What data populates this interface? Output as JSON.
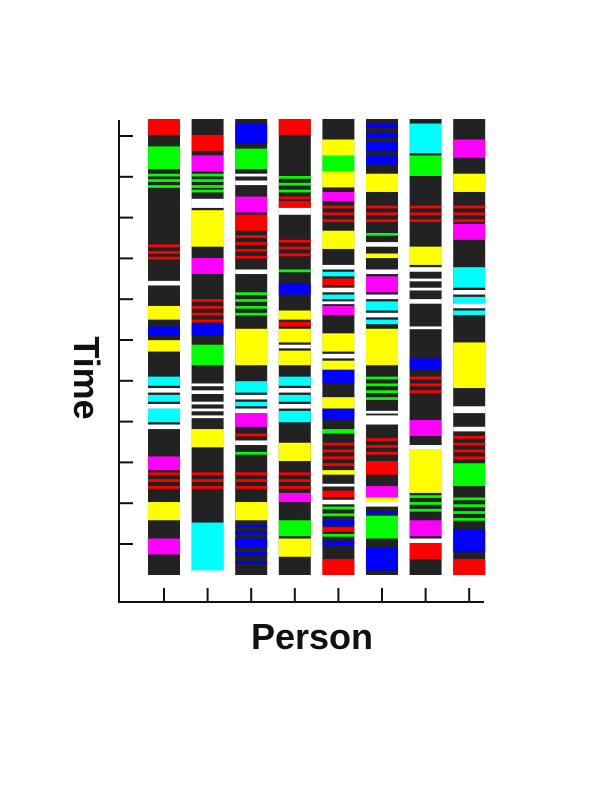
{
  "chart_data": {
    "type": "heatmap",
    "xlabel": "Person",
    "ylabel": "Time",
    "ylim": [
      0,
      100
    ],
    "grid": false,
    "legend": "none",
    "x_tick_count": 8,
    "y_tick_count": 11,
    "base_color": "#222222",
    "colors": {
      "R": "#ff0000",
      "G": "#00ff00",
      "B": "#0000ff",
      "Y": "#ffff00",
      "M": "#ff00ff",
      "C": "#00ffff",
      "W": "#ffffff"
    },
    "persons": [
      {
        "segments": [
          [
            0,
            3.5,
            "R"
          ],
          [
            6,
            11,
            "G"
          ],
          [
            12,
            12.6,
            "G"
          ],
          [
            13.2,
            13.8,
            "G"
          ],
          [
            14.5,
            15.1,
            "G"
          ],
          [
            27.5,
            28.1,
            "R"
          ],
          [
            29,
            29.6,
            "R"
          ],
          [
            30.2,
            30.8,
            "R"
          ],
          [
            35.5,
            36.5,
            "W"
          ],
          [
            41,
            44,
            "Y"
          ],
          [
            45.5,
            47.5,
            "B"
          ],
          [
            48.5,
            51,
            "Y"
          ],
          [
            56.5,
            58.5,
            "C"
          ],
          [
            59,
            60,
            "W"
          ],
          [
            60.5,
            62,
            "C"
          ],
          [
            62.5,
            63.5,
            "W"
          ],
          [
            63.5,
            66.5,
            "C"
          ],
          [
            67,
            68,
            "W"
          ],
          [
            74,
            77,
            "M"
          ],
          [
            77.5,
            78.1,
            "R"
          ],
          [
            79,
            79.6,
            "R"
          ],
          [
            80.5,
            81.1,
            "R"
          ],
          [
            84,
            88,
            "Y"
          ],
          [
            92,
            95.5,
            "M"
          ]
        ]
      },
      {
        "segments": [
          [
            3.5,
            7,
            "R"
          ],
          [
            8,
            11.5,
            "M"
          ],
          [
            12,
            12.6,
            "G"
          ],
          [
            13.2,
            13.8,
            "G"
          ],
          [
            14.5,
            15.1,
            "G"
          ],
          [
            15.5,
            16.1,
            "G"
          ],
          [
            17.5,
            19.5,
            "W"
          ],
          [
            20,
            28,
            "Y"
          ],
          [
            30.5,
            34,
            "M"
          ],
          [
            39.5,
            40.1,
            "R"
          ],
          [
            41,
            41.6,
            "R"
          ],
          [
            42.5,
            43.1,
            "R"
          ],
          [
            44,
            44.6,
            "R"
          ],
          [
            45,
            47.5,
            "B"
          ],
          [
            49.5,
            54,
            "G"
          ],
          [
            58,
            58.6,
            "W"
          ],
          [
            59.5,
            60.3,
            "W"
          ],
          [
            62,
            62.6,
            "W"
          ],
          [
            63.5,
            64.1,
            "W"
          ],
          [
            65,
            65.6,
            "W"
          ],
          [
            68,
            72,
            "Y"
          ],
          [
            77.5,
            78.1,
            "R"
          ],
          [
            79,
            79.6,
            "R"
          ],
          [
            80.5,
            81.1,
            "R"
          ],
          [
            88.5,
            99,
            "C"
          ],
          [
            99,
            100,
            "W"
          ]
        ]
      },
      {
        "segments": [
          [
            1,
            5.5,
            "B"
          ],
          [
            6.5,
            11,
            "G"
          ],
          [
            12,
            12.6,
            "W"
          ],
          [
            13.5,
            14.5,
            "W"
          ],
          [
            17,
            20.5,
            "M"
          ],
          [
            21,
            24.5,
            "R"
          ],
          [
            25.5,
            26.1,
            "R"
          ],
          [
            27,
            27.6,
            "R"
          ],
          [
            28.5,
            29.1,
            "R"
          ],
          [
            30,
            30.6,
            "R"
          ],
          [
            33,
            34,
            "W"
          ],
          [
            38,
            38.6,
            "G"
          ],
          [
            39.5,
            40.1,
            "G"
          ],
          [
            41,
            41.6,
            "G"
          ],
          [
            42.5,
            43.1,
            "G"
          ],
          [
            46,
            54,
            "Y"
          ],
          [
            57.5,
            60,
            "C"
          ],
          [
            60.5,
            61.5,
            "W"
          ],
          [
            62,
            63,
            "C"
          ],
          [
            63.5,
            64.5,
            "W"
          ],
          [
            64.5,
            67.5,
            "M"
          ],
          [
            69,
            69.6,
            "R"
          ],
          [
            70.5,
            71.5,
            "W"
          ],
          [
            73,
            73.6,
            "G"
          ],
          [
            77.5,
            78.1,
            "R"
          ],
          [
            79,
            79.6,
            "R"
          ],
          [
            80.5,
            81.1,
            "R"
          ],
          [
            84,
            88,
            "Y"
          ],
          [
            89,
            89.6,
            "B"
          ],
          [
            90.5,
            91.1,
            "B"
          ],
          [
            92,
            94,
            "B"
          ],
          [
            95,
            95.6,
            "B"
          ],
          [
            97,
            97.6,
            "B"
          ]
        ]
      },
      {
        "segments": [
          [
            0,
            3.5,
            "R"
          ],
          [
            12.5,
            13.1,
            "G"
          ],
          [
            14,
            14.6,
            "G"
          ],
          [
            15.5,
            16.1,
            "G"
          ],
          [
            17,
            17.6,
            "R"
          ],
          [
            18,
            19.5,
            "R"
          ],
          [
            19.5,
            21,
            "W"
          ],
          [
            26.5,
            27.1,
            "R"
          ],
          [
            28,
            28.6,
            "R"
          ],
          [
            29.5,
            30.1,
            "R"
          ],
          [
            33,
            33.6,
            "G"
          ],
          [
            36,
            38.5,
            "B"
          ],
          [
            42,
            44,
            "Y"
          ],
          [
            44.5,
            45.5,
            "R"
          ],
          [
            46,
            49,
            "Y"
          ],
          [
            49.5,
            50.3,
            "W"
          ],
          [
            50.8,
            54,
            "Y"
          ],
          [
            56.5,
            58.5,
            "C"
          ],
          [
            59,
            60,
            "W"
          ],
          [
            60.5,
            62,
            "C"
          ],
          [
            62.5,
            63.5,
            "W"
          ],
          [
            64,
            66.5,
            "C"
          ],
          [
            71,
            75,
            "Y"
          ],
          [
            77.5,
            78.1,
            "R"
          ],
          [
            79,
            79.6,
            "R"
          ],
          [
            80.5,
            81.1,
            "R"
          ],
          [
            82,
            84,
            "M"
          ],
          [
            88,
            91.5,
            "G"
          ],
          [
            92,
            96,
            "Y"
          ]
        ]
      },
      {
        "segments": [
          [
            4.5,
            8,
            "Y"
          ],
          [
            8,
            11.5,
            "G"
          ],
          [
            11.5,
            15,
            "Y"
          ],
          [
            16,
            18,
            "M"
          ],
          [
            19,
            19.6,
            "R"
          ],
          [
            20.5,
            21.1,
            "R"
          ],
          [
            22,
            22.6,
            "R"
          ],
          [
            24.5,
            28.5,
            "Y"
          ],
          [
            32,
            33,
            "W"
          ],
          [
            33.5,
            34.5,
            "C"
          ],
          [
            35,
            36.5,
            "R"
          ],
          [
            37,
            38,
            "W"
          ],
          [
            38.5,
            39.5,
            "C"
          ],
          [
            40,
            40.6,
            "W"
          ],
          [
            41,
            43,
            "M"
          ],
          [
            47,
            51,
            "Y"
          ],
          [
            51.5,
            52.5,
            "W"
          ],
          [
            53,
            55,
            "Y"
          ],
          [
            55,
            58,
            "B"
          ],
          [
            61,
            63.5,
            "Y"
          ],
          [
            63.5,
            66,
            "B"
          ],
          [
            68,
            69,
            "G"
          ],
          [
            71,
            71.6,
            "R"
          ],
          [
            72.5,
            73.1,
            "R"
          ],
          [
            74,
            74.6,
            "R"
          ],
          [
            75.5,
            76.1,
            "R"
          ],
          [
            77,
            78,
            "Y"
          ],
          [
            80,
            80.6,
            "W"
          ],
          [
            81.5,
            83,
            "R"
          ],
          [
            83.5,
            84.5,
            "W"
          ],
          [
            85,
            85.6,
            "G"
          ],
          [
            86.5,
            87.1,
            "G"
          ],
          [
            88,
            89,
            "B"
          ],
          [
            89.5,
            90.5,
            "R"
          ],
          [
            91,
            91.6,
            "G"
          ],
          [
            92.5,
            93.5,
            "B"
          ],
          [
            96.5,
            100,
            "R"
          ]
        ]
      },
      {
        "segments": [
          [
            1,
            2,
            "B"
          ],
          [
            3,
            4,
            "B"
          ],
          [
            5,
            7,
            "B"
          ],
          [
            8,
            10,
            "B"
          ],
          [
            12,
            16,
            "Y"
          ],
          [
            19,
            19.6,
            "R"
          ],
          [
            20.5,
            21.1,
            "R"
          ],
          [
            22,
            22.6,
            "R"
          ],
          [
            25,
            25.6,
            "G"
          ],
          [
            27,
            28,
            "W"
          ],
          [
            29.5,
            30.5,
            "Y"
          ],
          [
            33,
            34,
            "W"
          ],
          [
            34.5,
            38,
            "M"
          ],
          [
            38.5,
            39.5,
            "W"
          ],
          [
            40,
            42,
            "C"
          ],
          [
            42.5,
            43.5,
            "W"
          ],
          [
            44,
            45,
            "C"
          ],
          [
            46,
            54,
            "Y"
          ],
          [
            56.5,
            57.1,
            "G"
          ],
          [
            58,
            58.6,
            "G"
          ],
          [
            59.5,
            60.1,
            "G"
          ],
          [
            61,
            61.6,
            "G"
          ],
          [
            64,
            64.6,
            "W"
          ],
          [
            65,
            67,
            "W"
          ],
          [
            70,
            70.6,
            "R"
          ],
          [
            71.5,
            72.1,
            "R"
          ],
          [
            73,
            73.6,
            "R"
          ],
          [
            75,
            78,
            "R"
          ],
          [
            80.5,
            83,
            "M"
          ],
          [
            83,
            84,
            "Y"
          ],
          [
            84,
            85,
            "W"
          ],
          [
            86,
            86.6,
            "B"
          ],
          [
            87,
            92,
            "G"
          ],
          [
            94,
            99,
            "B"
          ]
        ]
      },
      {
        "segments": [
          [
            1,
            7.5,
            "C"
          ],
          [
            8,
            12.5,
            "G"
          ],
          [
            19,
            19.6,
            "R"
          ],
          [
            20.5,
            21.1,
            "R"
          ],
          [
            22,
            22.6,
            "R"
          ],
          [
            28,
            32,
            "Y"
          ],
          [
            32.5,
            33.5,
            "W"
          ],
          [
            35,
            35.6,
            "W"
          ],
          [
            37,
            37.6,
            "W"
          ],
          [
            39.5,
            40.5,
            "W"
          ],
          [
            45.5,
            46.1,
            "W"
          ],
          [
            52.5,
            55,
            "B"
          ],
          [
            56.5,
            57.1,
            "R"
          ],
          [
            58,
            58.6,
            "R"
          ],
          [
            59.5,
            60.1,
            "R"
          ],
          [
            66,
            69.5,
            "M"
          ],
          [
            71.5,
            72.5,
            "W"
          ],
          [
            72.5,
            82,
            "Y"
          ],
          [
            82.5,
            83.1,
            "G"
          ],
          [
            84,
            84.6,
            "G"
          ],
          [
            85.5,
            86.1,
            "G"
          ],
          [
            88,
            91.5,
            "M"
          ],
          [
            92,
            93,
            "W"
          ],
          [
            93,
            96.5,
            "R"
          ]
        ]
      },
      {
        "segments": [
          [
            4.5,
            8.5,
            "M"
          ],
          [
            12,
            16,
            "Y"
          ],
          [
            19,
            19.6,
            "R"
          ],
          [
            20.5,
            21.1,
            "R"
          ],
          [
            22,
            22.6,
            "R"
          ],
          [
            23,
            26.5,
            "M"
          ],
          [
            32.5,
            37,
            "C"
          ],
          [
            37.5,
            38.5,
            "W"
          ],
          [
            39,
            40.5,
            "C"
          ],
          [
            40.5,
            41.5,
            "W"
          ],
          [
            42,
            43,
            "C"
          ],
          [
            49,
            59,
            "Y"
          ],
          [
            63,
            64.5,
            "W"
          ],
          [
            67.5,
            68.5,
            "W"
          ],
          [
            69.5,
            70.1,
            "R"
          ],
          [
            71,
            71.6,
            "R"
          ],
          [
            72.5,
            73.1,
            "R"
          ],
          [
            74,
            74.6,
            "R"
          ],
          [
            75.5,
            80.5,
            "G"
          ],
          [
            83,
            83.6,
            "G"
          ],
          [
            84.5,
            85.1,
            "G"
          ],
          [
            86,
            86.6,
            "G"
          ],
          [
            87.5,
            88.1,
            "G"
          ],
          [
            90,
            95,
            "B"
          ],
          [
            96.5,
            100,
            "R"
          ]
        ]
      }
    ]
  }
}
